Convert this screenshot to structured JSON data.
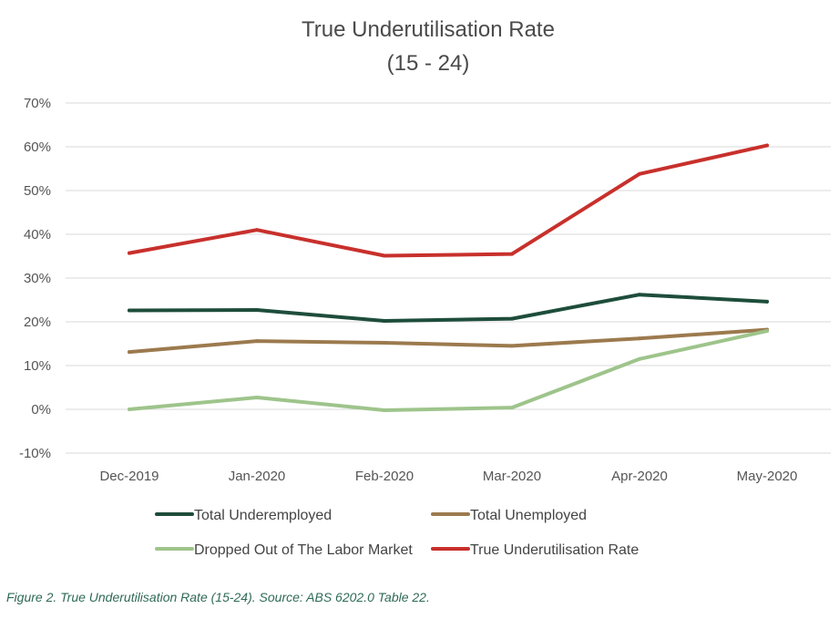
{
  "chart_data": {
    "type": "line",
    "title": "True Underutilisation Rate",
    "subtitle": "(15 - 24)",
    "categories": [
      "Dec-2019",
      "Jan-2020",
      "Feb-2020",
      "Mar-2020",
      "Apr-2020",
      "May-2020"
    ],
    "ylim": [
      -10,
      70
    ],
    "yticks": [
      -10,
      0,
      10,
      20,
      30,
      40,
      50,
      60,
      70
    ],
    "ytick_labels": [
      "-10%",
      "0%",
      "10%",
      "20%",
      "30%",
      "40%",
      "50%",
      "60%",
      "70%"
    ],
    "grid": true,
    "legend_position": "bottom",
    "series": [
      {
        "name": "Total Underemployed",
        "color": "#1e4d3b",
        "values": [
          22.6,
          22.7,
          20.2,
          20.7,
          26.2,
          24.6
        ]
      },
      {
        "name": "Total Unemployed",
        "color": "#9c7a4e",
        "values": [
          13.1,
          15.6,
          15.2,
          14.5,
          16.2,
          18.2
        ]
      },
      {
        "name": "Dropped Out of The Labor Market",
        "color": "#9ec48b",
        "values": [
          0.0,
          2.7,
          -0.2,
          0.4,
          11.5,
          17.9
        ]
      },
      {
        "name": "True Underutilisation Rate",
        "color": "#c8302c",
        "values": [
          35.7,
          41.0,
          35.1,
          35.5,
          53.8,
          60.3
        ]
      }
    ]
  },
  "caption": "Figure 2. True Underutilisation Rate (15-24). Source: ABS 6202.0 Table 22."
}
